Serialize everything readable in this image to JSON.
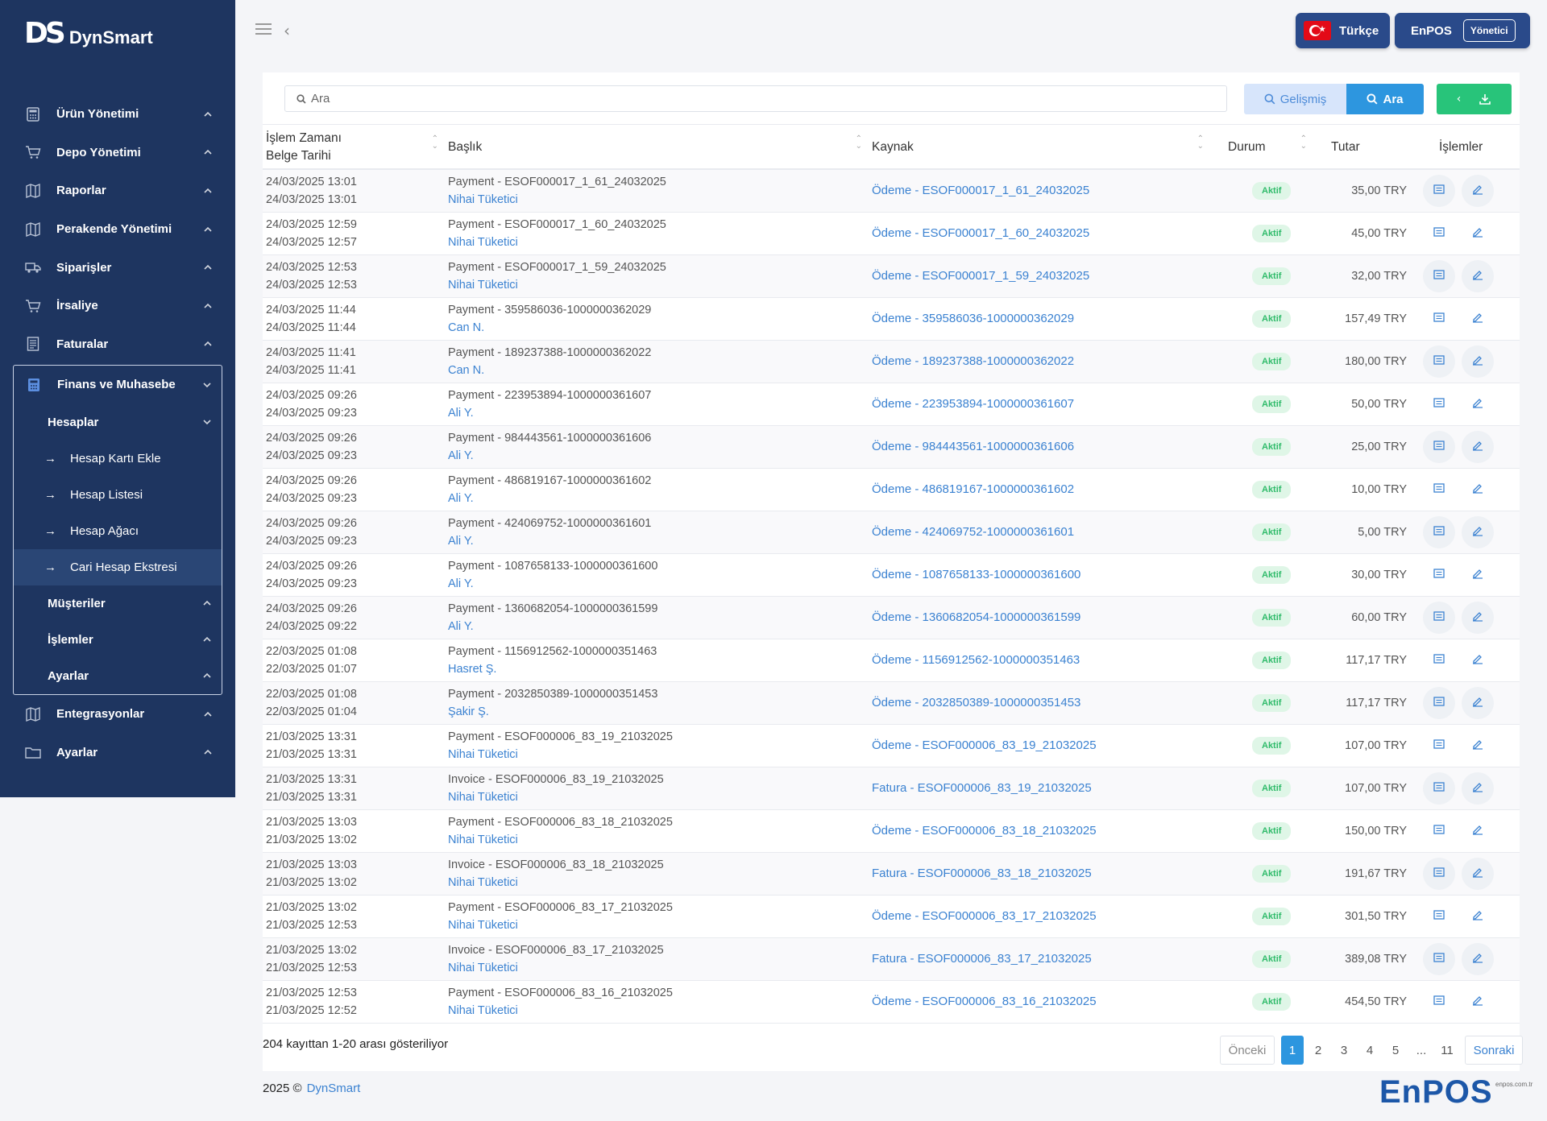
{
  "brand": {
    "mark": "DS",
    "name": "DynSmart"
  },
  "sidebar": {
    "items_top": [
      {
        "label": "Ürün Yönetimi",
        "icon": "calculator-icon"
      },
      {
        "label": "Depo Yönetimi",
        "icon": "cart-icon"
      },
      {
        "label": "Raporlar",
        "icon": "map-icon"
      },
      {
        "label": "Perakende Yönetimi",
        "icon": "map-icon"
      },
      {
        "label": "Siparişler",
        "icon": "truck-icon"
      },
      {
        "label": "İrsaliye",
        "icon": "cart-icon"
      },
      {
        "label": "Faturalar",
        "icon": "document-icon"
      }
    ],
    "group": {
      "label": "Finans ve Muhasebe",
      "sub": {
        "label": "Hesaplar",
        "leaves": [
          "Hesap Kartı Ekle",
          "Hesap Listesi",
          "Hesap Ağacı",
          "Cari Hesap Ekstresi"
        ]
      },
      "others": [
        "Müşteriler",
        "İşlemler",
        "Ayarlar"
      ]
    },
    "items_bottom": [
      {
        "label": "Entegrasyonlar",
        "icon": "map-icon"
      },
      {
        "label": "Ayarlar",
        "icon": "folder-icon"
      }
    ]
  },
  "topbar": {
    "language": "Türkçe",
    "company": "EnPOS",
    "role": "Yönetici"
  },
  "search": {
    "placeholder": "Ara",
    "advanced_label": "Gelişmiş",
    "search_label": "Ara"
  },
  "table": {
    "headers": {
      "time": "İşlem Zamanı",
      "doc_date": "Belge Tarihi",
      "title": "Başlık",
      "source": "Kaynak",
      "status": "Durum",
      "amount": "Tutar",
      "actions": "İşlemler"
    },
    "rows": [
      {
        "time": "24/03/2025 13:01",
        "doc_date": "24/03/2025 13:01",
        "title": "Payment - ESOF000017_1_61_24032025",
        "customer": "Nihai Tüketici",
        "source": "Ödeme - ESOF000017_1_61_24032025",
        "status": "Aktif",
        "amount": "35,00 TRY"
      },
      {
        "time": "24/03/2025 12:59",
        "doc_date": "24/03/2025 12:57",
        "title": "Payment - ESOF000017_1_60_24032025",
        "customer": "Nihai Tüketici",
        "source": "Ödeme - ESOF000017_1_60_24032025",
        "status": "Aktif",
        "amount": "45,00 TRY"
      },
      {
        "time": "24/03/2025 12:53",
        "doc_date": "24/03/2025 12:53",
        "title": "Payment - ESOF000017_1_59_24032025",
        "customer": "Nihai Tüketici",
        "source": "Ödeme - ESOF000017_1_59_24032025",
        "status": "Aktif",
        "amount": "32,00 TRY"
      },
      {
        "time": "24/03/2025 11:44",
        "doc_date": "24/03/2025 11:44",
        "title": "Payment - 359586036-1000000362029",
        "customer": "Can N.",
        "source": "Ödeme - 359586036-1000000362029",
        "status": "Aktif",
        "amount": "157,49 TRY"
      },
      {
        "time": "24/03/2025 11:41",
        "doc_date": "24/03/2025 11:41",
        "title": "Payment - 189237388-1000000362022",
        "customer": "Can N.",
        "source": "Ödeme - 189237388-1000000362022",
        "status": "Aktif",
        "amount": "180,00 TRY"
      },
      {
        "time": "24/03/2025 09:26",
        "doc_date": "24/03/2025 09:23",
        "title": "Payment - 223953894-1000000361607",
        "customer": "Ali Y.",
        "source": "Ödeme - 223953894-1000000361607",
        "status": "Aktif",
        "amount": "50,00 TRY"
      },
      {
        "time": "24/03/2025 09:26",
        "doc_date": "24/03/2025 09:23",
        "title": "Payment - 984443561-1000000361606",
        "customer": "Ali Y.",
        "source": "Ödeme - 984443561-1000000361606",
        "status": "Aktif",
        "amount": "25,00 TRY"
      },
      {
        "time": "24/03/2025 09:26",
        "doc_date": "24/03/2025 09:23",
        "title": "Payment - 486819167-1000000361602",
        "customer": "Ali Y.",
        "source": "Ödeme - 486819167-1000000361602",
        "status": "Aktif",
        "amount": "10,00 TRY"
      },
      {
        "time": "24/03/2025 09:26",
        "doc_date": "24/03/2025 09:23",
        "title": "Payment - 424069752-1000000361601",
        "customer": "Ali Y.",
        "source": "Ödeme - 424069752-1000000361601",
        "status": "Aktif",
        "amount": "5,00 TRY"
      },
      {
        "time": "24/03/2025 09:26",
        "doc_date": "24/03/2025 09:23",
        "title": "Payment - 1087658133-1000000361600",
        "customer": "Ali Y.",
        "source": "Ödeme - 1087658133-1000000361600",
        "status": "Aktif",
        "amount": "30,00 TRY"
      },
      {
        "time": "24/03/2025 09:26",
        "doc_date": "24/03/2025 09:22",
        "title": "Payment - 1360682054-1000000361599",
        "customer": "Ali Y.",
        "source": "Ödeme - 1360682054-1000000361599",
        "status": "Aktif",
        "amount": "60,00 TRY"
      },
      {
        "time": "22/03/2025 01:08",
        "doc_date": "22/03/2025 01:07",
        "title": "Payment - 1156912562-1000000351463",
        "customer": "Hasret Ş.",
        "source": "Ödeme - 1156912562-1000000351463",
        "status": "Aktif",
        "amount": "117,17 TRY"
      },
      {
        "time": "22/03/2025 01:08",
        "doc_date": "22/03/2025 01:04",
        "title": "Payment - 2032850389-1000000351453",
        "customer": "Şakir Ş.",
        "source": "Ödeme - 2032850389-1000000351453",
        "status": "Aktif",
        "amount": "117,17 TRY"
      },
      {
        "time": "21/03/2025 13:31",
        "doc_date": "21/03/2025 13:31",
        "title": "Payment - ESOF000006_83_19_21032025",
        "customer": "Nihai Tüketici",
        "source": "Ödeme - ESOF000006_83_19_21032025",
        "status": "Aktif",
        "amount": "107,00 TRY"
      },
      {
        "time": "21/03/2025 13:31",
        "doc_date": "21/03/2025 13:31",
        "title": "Invoice - ESOF000006_83_19_21032025",
        "customer": "Nihai Tüketici",
        "source": "Fatura - ESOF000006_83_19_21032025",
        "status": "Aktif",
        "amount": "107,00 TRY"
      },
      {
        "time": "21/03/2025 13:03",
        "doc_date": "21/03/2025 13:02",
        "title": "Payment - ESOF000006_83_18_21032025",
        "customer": "Nihai Tüketici",
        "source": "Ödeme - ESOF000006_83_18_21032025",
        "status": "Aktif",
        "amount": "150,00 TRY"
      },
      {
        "time": "21/03/2025 13:03",
        "doc_date": "21/03/2025 13:02",
        "title": "Invoice - ESOF000006_83_18_21032025",
        "customer": "Nihai Tüketici",
        "source": "Fatura - ESOF000006_83_18_21032025",
        "status": "Aktif",
        "amount": "191,67 TRY"
      },
      {
        "time": "21/03/2025 13:02",
        "doc_date": "21/03/2025 12:53",
        "title": "Payment - ESOF000006_83_17_21032025",
        "customer": "Nihai Tüketici",
        "source": "Ödeme - ESOF000006_83_17_21032025",
        "status": "Aktif",
        "amount": "301,50 TRY"
      },
      {
        "time": "21/03/2025 13:02",
        "doc_date": "21/03/2025 12:53",
        "title": "Invoice - ESOF000006_83_17_21032025",
        "customer": "Nihai Tüketici",
        "source": "Fatura - ESOF000006_83_17_21032025",
        "status": "Aktif",
        "amount": "389,08 TRY"
      },
      {
        "time": "21/03/2025 12:53",
        "doc_date": "21/03/2025 12:52",
        "title": "Payment - ESOF000006_83_16_21032025",
        "customer": "Nihai Tüketici",
        "source": "Ödeme - ESOF000006_83_16_21032025",
        "status": "Aktif",
        "amount": "454,50 TRY"
      }
    ]
  },
  "pagination": {
    "info": "204 kayıttan 1-20 arası gösteriliyor",
    "prev": "Önceki",
    "pages": [
      "1",
      "2",
      "3",
      "4",
      "5",
      "...",
      "11"
    ],
    "current": "1",
    "next": "Sonraki"
  },
  "footer": {
    "copyright": "2025 ©",
    "link": "DynSmart",
    "logo": "EnPOS",
    "logo_sub": "enpos.com.tr"
  },
  "colors": {
    "sidebar": "#1e3560",
    "accent": "#2d96df",
    "success": "#28c47a",
    "link": "#3b82d1"
  }
}
